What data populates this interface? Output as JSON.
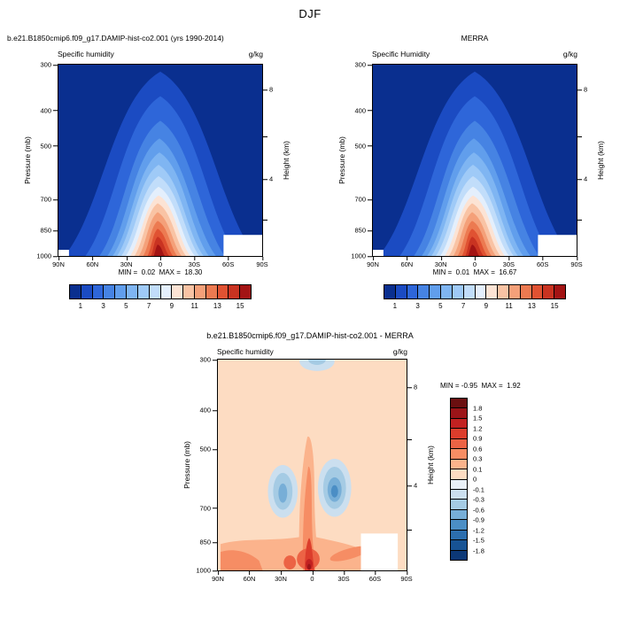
{
  "page_title": "DJF",
  "panels": {
    "model": {
      "header": "b.e21.B1850cmip6.f09_g17.DAMIP-hist-co2.001 (yrs 1990-2014)",
      "field_label": "Specific humidity",
      "units": "g/kg",
      "stats": "MIN =  0.02  MAX =  18.30"
    },
    "obs": {
      "header": "MERRA",
      "field_label": "Specific Humidity",
      "units": "g/kg",
      "stats": "MIN =  0.01  MAX =  16.67"
    },
    "diff": {
      "header": "b.e21.B1850cmip6.f09_g17.DAMIP-hist-co2.001 - MERRA",
      "field_label": "Specific humidity",
      "units": "g/kg",
      "stats": "MIN = -0.95  MAX =  1.92"
    }
  },
  "axes": {
    "pressure_label": "Pressure (mb)",
    "height_label": "Height (km)",
    "y_ticks": [
      {
        "label": "300",
        "pos": 0
      },
      {
        "label": "400",
        "pos": 0.239
      },
      {
        "label": "500",
        "pos": 0.424
      },
      {
        "label": "700",
        "pos": 0.704
      },
      {
        "label": "850",
        "pos": 0.865
      },
      {
        "label": "1000",
        "pos": 1
      }
    ],
    "x_ticks": [
      {
        "label": "90N",
        "pos": 0
      },
      {
        "label": "60N",
        "pos": 0.1667
      },
      {
        "label": "30N",
        "pos": 0.3333
      },
      {
        "label": "0",
        "pos": 0.5
      },
      {
        "label": "30S",
        "pos": 0.6667
      },
      {
        "label": "60S",
        "pos": 0.8333
      },
      {
        "label": "90S",
        "pos": 1
      }
    ],
    "height_ticks": [
      {
        "label": "8",
        "pos": 0.13
      },
      {
        "label": "",
        "pos": 0.377
      },
      {
        "label": "4",
        "pos": 0.597
      },
      {
        "label": "",
        "pos": 0.808
      }
    ]
  },
  "colorbar_main": {
    "colors": [
      "#0A2F8F",
      "#1B4BC2",
      "#2E66D9",
      "#4683E3",
      "#619EEC",
      "#7FB5F2",
      "#9FCAF7",
      "#C1DDFA",
      "#E4EFFC",
      "#FCE3D4",
      "#F9C3A4",
      "#F4A079",
      "#EC7A51",
      "#E05232",
      "#C93321",
      "#A31414"
    ],
    "tick_labels": [
      {
        "label": "1",
        "pos": 0.0625
      },
      {
        "label": "3",
        "pos": 0.1875
      },
      {
        "label": "5",
        "pos": 0.3125
      },
      {
        "label": "7",
        "pos": 0.4375
      },
      {
        "label": "9",
        "pos": 0.5625
      },
      {
        "label": "11",
        "pos": 0.6875
      },
      {
        "label": "13",
        "pos": 0.8125
      },
      {
        "label": "15",
        "pos": 0.9375
      }
    ]
  },
  "colorbar_diff": {
    "colors": [
      "#6B0F10",
      "#9C1418",
      "#C22121",
      "#DC3D2C",
      "#EC6345",
      "#F68D64",
      "#FBB38C",
      "#FDDCC2",
      "#E9F0F7",
      "#CBDFEF",
      "#A5CBE4",
      "#77AED7",
      "#4B8EC5",
      "#2C6EAE",
      "#175394",
      "#0C3877"
    ],
    "tick_labels": [
      {
        "label": "1.8",
        "pos": 0.0625
      },
      {
        "label": "1.5",
        "pos": 0.125
      },
      {
        "label": "1.2",
        "pos": 0.1875
      },
      {
        "label": "0.9",
        "pos": 0.25
      },
      {
        "label": "0.6",
        "pos": 0.3125
      },
      {
        "label": "0.3",
        "pos": 0.375
      },
      {
        "label": "0.1",
        "pos": 0.4375
      },
      {
        "label": "0",
        "pos": 0.5
      },
      {
        "label": "-0.1",
        "pos": 0.5625
      },
      {
        "label": "-0.3",
        "pos": 0.625
      },
      {
        "label": "-0.6",
        "pos": 0.6875
      },
      {
        "label": "-0.9",
        "pos": 0.75
      },
      {
        "label": "-1.2",
        "pos": 0.8125
      },
      {
        "label": "-1.5",
        "pos": 0.875
      },
      {
        "label": "-1.8",
        "pos": 0.9375
      }
    ]
  },
  "chart_data": [
    {
      "type": "contour",
      "panel": "model",
      "season": "DJF",
      "title": "b.e21.B1850cmip6.f09_g17.DAMIP-hist-co2.001 (yrs 1990-2014)",
      "variable": "Specific humidity",
      "units": "g/kg",
      "x_tick_labels": [
        "90N",
        "60N",
        "30N",
        "0",
        "30S",
        "60S",
        "90S"
      ],
      "ylabel": "Pressure (mb)",
      "y_ticks": [
        300,
        400,
        500,
        700,
        850,
        1000
      ],
      "y_scale": "log",
      "y2label": "Height (km)",
      "y2_ticks": [
        8,
        4
      ],
      "min": 0.02,
      "max": 18.3,
      "contour_levels": [
        1,
        2,
        3,
        4,
        5,
        6,
        7,
        8,
        9,
        10,
        11,
        12,
        13,
        14,
        15
      ],
      "colorbar_tick_labels": [
        1,
        3,
        5,
        7,
        9,
        11,
        13,
        15
      ],
      "colormap": "blue-white-red",
      "description": "Zonal-mean specific humidity; maximum near surface at the equator (dark red core ~15+ g/kg below 900 mb), decreasing upward and poleward to <1 g/kg (dark blue) above ~300 mb and at high latitudes; white masked region near surface 60S-90S."
    },
    {
      "type": "contour",
      "panel": "observation",
      "season": "DJF",
      "title": "MERRA",
      "variable": "Specific Humidity",
      "units": "g/kg",
      "x_tick_labels": [
        "90N",
        "60N",
        "30N",
        "0",
        "30S",
        "60S",
        "90S"
      ],
      "ylabel": "Pressure (mb)",
      "y_ticks": [
        300,
        400,
        500,
        700,
        850,
        1000
      ],
      "y_scale": "log",
      "y2label": "Height (km)",
      "y2_ticks": [
        8,
        4
      ],
      "min": 0.01,
      "max": 16.67,
      "contour_levels": [
        1,
        2,
        3,
        4,
        5,
        6,
        7,
        8,
        9,
        10,
        11,
        12,
        13,
        14,
        15
      ],
      "colorbar_tick_labels": [
        1,
        3,
        5,
        7,
        9,
        11,
        13,
        15
      ],
      "colormap": "blue-white-red",
      "description": "Same dome-shaped zonal-mean humidity structure as the model panel with surface equatorial maximum ~16.7 g/kg."
    },
    {
      "type": "contour",
      "panel": "difference",
      "season": "DJF",
      "title": "b.e21.B1850cmip6.f09_g17.DAMIP-hist-co2.001 - MERRA",
      "variable": "Specific humidity",
      "units": "g/kg",
      "x_tick_labels": [
        "90N",
        "60N",
        "30N",
        "0",
        "30S",
        "60S",
        "90S"
      ],
      "ylabel": "Pressure (mb)",
      "y_ticks": [
        300,
        400,
        500,
        700,
        850,
        1000
      ],
      "y_scale": "log",
      "y2label": "Height (km)",
      "y2_ticks": [
        8,
        4
      ],
      "min": -0.95,
      "max": 1.92,
      "contour_levels": [
        -1.8,
        -1.5,
        -1.2,
        -0.9,
        -0.6,
        -0.3,
        -0.1,
        0,
        0.1,
        0.3,
        0.6,
        0.9,
        1.2,
        1.5,
        1.8
      ],
      "colormap": "red-white-blue (positive=red)",
      "description": "Mostly weak positive bias (pale orange); moist bias column at the equator strongest near the surface (~1.9 g/kg); dry-bias (blue) blobs near 600-750 mb around 25N and 15S and a small dry patch near 300 mb at the equator; white masked region near surface 60S-90S."
    }
  ]
}
